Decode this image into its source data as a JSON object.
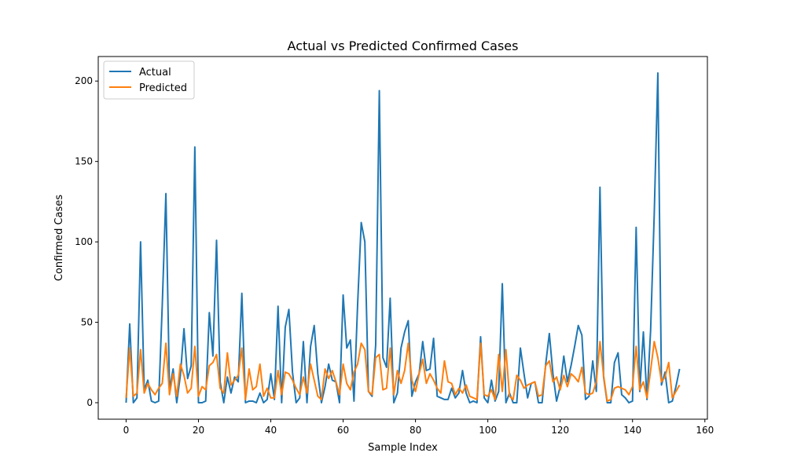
{
  "chart_data": {
    "type": "line",
    "title": "Actual vs Predicted Confirmed Cases",
    "xlabel": "Sample Index",
    "ylabel": "Confirmed Cases",
    "xlim": [
      -7.7,
      160.7
    ],
    "ylim": [
      -10.25,
      215.25
    ],
    "xticks": [
      0,
      20,
      40,
      60,
      80,
      100,
      120,
      140,
      160
    ],
    "yticks": [
      0,
      50,
      100,
      150,
      200
    ],
    "legend": "top-left",
    "grid": false,
    "series": [
      {
        "name": "Actual",
        "color": "#1f77b4",
        "values": [
          0,
          49,
          0,
          3,
          100,
          8,
          14,
          1,
          0,
          1,
          61,
          130,
          8,
          21,
          0,
          17,
          46,
          15,
          23,
          159,
          0,
          0,
          1,
          56,
          29,
          101,
          13,
          0,
          16,
          6,
          16,
          13,
          68,
          0,
          1,
          1,
          0,
          6,
          0,
          2,
          18,
          2,
          60,
          0,
          47,
          58,
          19,
          0,
          3,
          38,
          0,
          35,
          48,
          18,
          0,
          10,
          24,
          14,
          13,
          0,
          67,
          34,
          39,
          1,
          61,
          112,
          100,
          7,
          4,
          36,
          194,
          28,
          22,
          65,
          0,
          6,
          34,
          44,
          51,
          4,
          13,
          18,
          38,
          20,
          21,
          40,
          4,
          3,
          2,
          2,
          9,
          3,
          6,
          20,
          6,
          0,
          1,
          0,
          41,
          3,
          0,
          14,
          1,
          7,
          74,
          0,
          6,
          0,
          0,
          34,
          18,
          3,
          12,
          13,
          0,
          0,
          24,
          43,
          18,
          1,
          10,
          29,
          13,
          23,
          35,
          48,
          42,
          2,
          4,
          26,
          7,
          134,
          16,
          0,
          0,
          25,
          31,
          5,
          3,
          0,
          1,
          109,
          7,
          44,
          2,
          45,
          117,
          205,
          11,
          19,
          0,
          1,
          10,
          21
        ]
      },
      {
        "name": "Predicted",
        "color": "#ff7f0e",
        "values": [
          3,
          34,
          4,
          6,
          33,
          6,
          12,
          8,
          5,
          9,
          12,
          37,
          5,
          18,
          4,
          24,
          17,
          6,
          9,
          35,
          4,
          10,
          8,
          23,
          25,
          30,
          9,
          6,
          31,
          11,
          14,
          17,
          34,
          2,
          21,
          8,
          10,
          24,
          4,
          9,
          3,
          3,
          20,
          5,
          19,
          18,
          14,
          9,
          5,
          16,
          6,
          24,
          14,
          4,
          2,
          21,
          15,
          20,
          13,
          5,
          24,
          12,
          8,
          19,
          24,
          37,
          33,
          7,
          5,
          28,
          30,
          8,
          9,
          34,
          5,
          20,
          12,
          20,
          37,
          14,
          7,
          18,
          27,
          12,
          18,
          14,
          9,
          6,
          26,
          13,
          12,
          5,
          9,
          6,
          11,
          4,
          3,
          2,
          37,
          5,
          4,
          8,
          2,
          30,
          7,
          33,
          4,
          2,
          17,
          14,
          9,
          11,
          12,
          13,
          4,
          5,
          23,
          26,
          13,
          16,
          8,
          17,
          10,
          18,
          16,
          13,
          22,
          6,
          5,
          6,
          13,
          38,
          17,
          1,
          2,
          9,
          10,
          9,
          8,
          5,
          10,
          35,
          8,
          13,
          3,
          20,
          38,
          28,
          13,
          16,
          25,
          3,
          7,
          11
        ]
      }
    ]
  }
}
